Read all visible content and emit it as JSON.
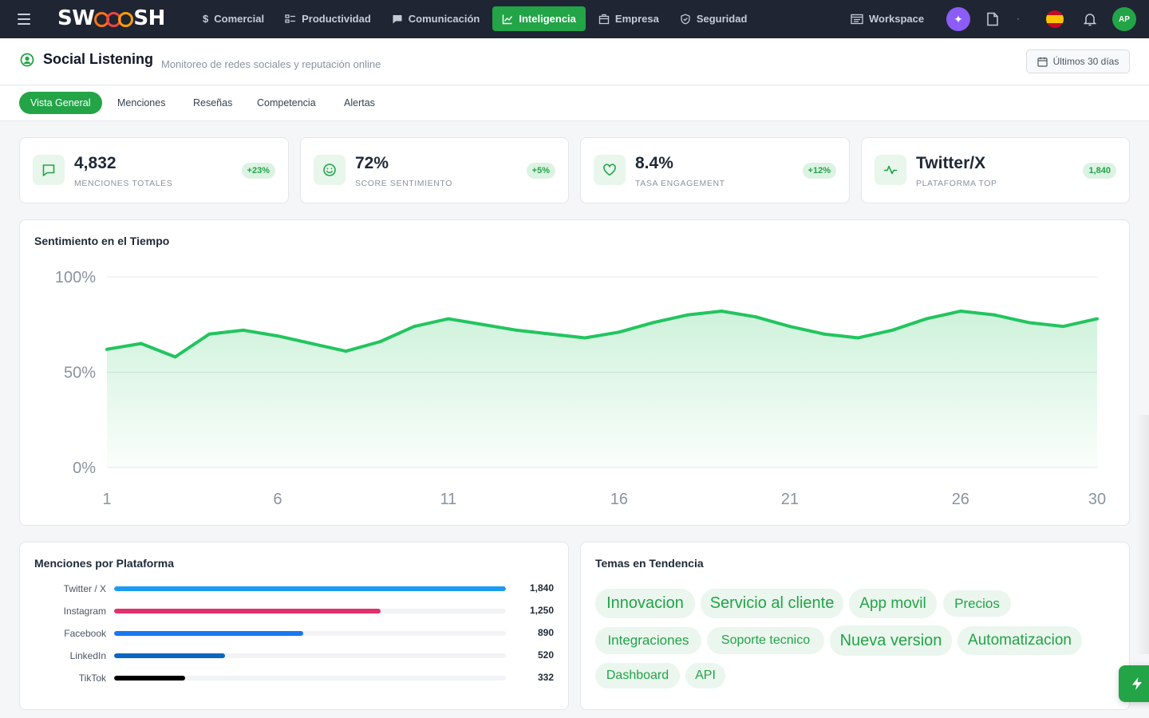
{
  "app": {
    "logo": "SWOOOSH",
    "workspace_label": "Workspace",
    "user_initials": "AP"
  },
  "colors": {
    "accent": "#22a447",
    "nav_bg": "#1f2533",
    "ai_purple": "#8b5cf6"
  },
  "nav": {
    "items": [
      {
        "label": "Comercial",
        "icon": "dollar-icon"
      },
      {
        "label": "Productividad",
        "icon": "checklist-icon"
      },
      {
        "label": "Comunicación",
        "icon": "chat-icon"
      },
      {
        "label": "Inteligencia",
        "icon": "chart-line-icon",
        "active": true
      },
      {
        "label": "Empresa",
        "icon": "building-icon"
      },
      {
        "label": "Seguridad",
        "icon": "shield-icon"
      }
    ]
  },
  "header": {
    "title": "Social Listening",
    "subtitle": "Monitoreo de redes sociales y reputación online",
    "date_range": "Últimos 30 días"
  },
  "tabs": [
    "Vista General",
    "Menciones",
    "Reseñas",
    "Competencia",
    "Alertas"
  ],
  "kpis": [
    {
      "value": "4,832",
      "label": "MENCIONES TOTALES",
      "badge": "+23%",
      "icon": "message-icon"
    },
    {
      "value": "72%",
      "label": "SCORE SENTIMIENTO",
      "badge": "+5%",
      "icon": "smile-icon"
    },
    {
      "value": "8.4%",
      "label": "TASA ENGAGEMENT",
      "badge": "+12%",
      "icon": "heart-icon"
    },
    {
      "value": "Twitter/X",
      "label": "PLATAFORMA TOP",
      "badge": "1,840",
      "icon": "activity-icon"
    }
  ],
  "sentiment_panel": {
    "title": "Sentimiento en el Tiempo"
  },
  "chart_data": [
    {
      "type": "area",
      "title": "Sentimiento en el Tiempo",
      "x": [
        1,
        2,
        3,
        4,
        5,
        6,
        7,
        8,
        9,
        10,
        11,
        12,
        13,
        14,
        15,
        16,
        17,
        18,
        19,
        20,
        21,
        22,
        23,
        24,
        25,
        26,
        27,
        28,
        29,
        30
      ],
      "values": [
        62,
        65,
        58,
        70,
        72,
        69,
        65,
        61,
        66,
        74,
        78,
        75,
        72,
        70,
        68,
        71,
        76,
        80,
        82,
        79,
        74,
        70,
        68,
        72,
        78,
        82,
        80,
        76,
        74,
        78
      ],
      "x_ticks": [
        "1",
        "6",
        "11",
        "16",
        "21",
        "26",
        "30"
      ],
      "y_ticks": [
        "0%",
        "50%",
        "100%"
      ],
      "ylim": [
        0,
        100
      ],
      "color": "#22c55e",
      "grid": true
    },
    {
      "type": "bar",
      "title": "Menciones por Plataforma",
      "categories": [
        "Twitter / X",
        "Instagram",
        "Facebook",
        "LinkedIn",
        "TikTok"
      ],
      "values": [
        1840,
        1250,
        890,
        520,
        332
      ],
      "value_labels": [
        "1,840",
        "1,250",
        "890",
        "520",
        "332"
      ],
      "colors": [
        "#1d9bf0",
        "#e1306c",
        "#1877f2",
        "#0a66c2",
        "#000000"
      ]
    }
  ],
  "trending": {
    "title": "Temas en Tendencia",
    "tags": [
      {
        "label": "Innovacion",
        "weight": 3
      },
      {
        "label": "Servicio al cliente",
        "weight": 3
      },
      {
        "label": "App movil",
        "weight": 2
      },
      {
        "label": "Precios",
        "weight": 1
      },
      {
        "label": "Integraciones",
        "weight": 1
      },
      {
        "label": "Soporte tecnico",
        "weight": 0
      },
      {
        "label": "Nueva version",
        "weight": 3
      },
      {
        "label": "Automatizacion",
        "weight": 2
      },
      {
        "label": "Dashboard",
        "weight": 0
      },
      {
        "label": "API",
        "weight": 0
      }
    ]
  }
}
